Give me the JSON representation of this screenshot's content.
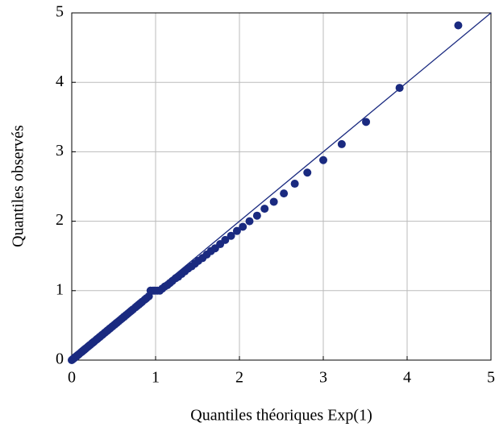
{
  "chart_data": {
    "type": "scatter",
    "x_label": "Quantiles théoriques Exp(1)",
    "y_label": "Quantiles observés",
    "color": "#1a2a80",
    "grid": true,
    "xlim": [
      0,
      5
    ],
    "ylim": [
      0,
      5
    ],
    "xticks": [
      0,
      1,
      2,
      3,
      4,
      5
    ],
    "yticks": [
      0,
      1,
      2,
      3,
      4,
      5
    ],
    "x": [
      0,
      0.01,
      0.02,
      0.03,
      0.04,
      0.05,
      0.06,
      0.07,
      0.08,
      0.09,
      0.11,
      0.12,
      0.13,
      0.14,
      0.15,
      0.16,
      0.17,
      0.19,
      0.2,
      0.21,
      0.22,
      0.24,
      0.25,
      0.26,
      0.27,
      0.29,
      0.3,
      0.31,
      0.33,
      0.34,
      0.36,
      0.37,
      0.39,
      0.4,
      0.42,
      0.43,
      0.45,
      0.46,
      0.48,
      0.49,
      0.51,
      0.53,
      0.54,
      0.56,
      0.58,
      0.6,
      0.62,
      0.63,
      0.65,
      0.67,
      0.69,
      0.71,
      0.73,
      0.76,
      0.78,
      0.8,
      0.82,
      0.84,
      0.87,
      0.89,
      0.92,
      0.94,
      0.97,
      0.99,
      1.02,
      1.05,
      1.08,
      1.11,
      1.14,
      1.17,
      1.2,
      1.24,
      1.27,
      1.31,
      1.35,
      1.39,
      1.43,
      1.47,
      1.51,
      1.56,
      1.61,
      1.66,
      1.71,
      1.77,
      1.83,
      1.9,
      1.97,
      2.04,
      2.12,
      2.21,
      2.3,
      2.41,
      2.53,
      2.66,
      2.81,
      3.0,
      3.22,
      3.51,
      3.91,
      4.61
    ],
    "y": [
      0,
      0.01,
      0.02,
      0.03,
      0.04,
      0.05,
      0.06,
      0.07,
      0.08,
      0.09,
      0.11,
      0.12,
      0.13,
      0.14,
      0.15,
      0.16,
      0.17,
      0.19,
      0.2,
      0.21,
      0.22,
      0.24,
      0.25,
      0.26,
      0.27,
      0.29,
      0.3,
      0.31,
      0.33,
      0.34,
      0.36,
      0.37,
      0.39,
      0.4,
      0.42,
      0.43,
      0.45,
      0.46,
      0.48,
      0.49,
      0.51,
      0.53,
      0.54,
      0.56,
      0.58,
      0.6,
      0.62,
      0.63,
      0.65,
      0.67,
      0.69,
      0.71,
      0.73,
      0.76,
      0.78,
      0.8,
      0.82,
      0.84,
      0.87,
      0.89,
      0.92,
      1.0,
      1.0,
      1.0,
      1.0,
      1.0,
      1.03,
      1.06,
      1.08,
      1.11,
      1.14,
      1.18,
      1.2,
      1.24,
      1.28,
      1.32,
      1.35,
      1.39,
      1.43,
      1.47,
      1.52,
      1.57,
      1.61,
      1.67,
      1.73,
      1.79,
      1.86,
      1.92,
      2.0,
      2.08,
      2.18,
      2.28,
      2.4,
      2.54,
      2.7,
      2.88,
      3.11,
      3.43,
      3.92,
      4.82
    ]
  }
}
